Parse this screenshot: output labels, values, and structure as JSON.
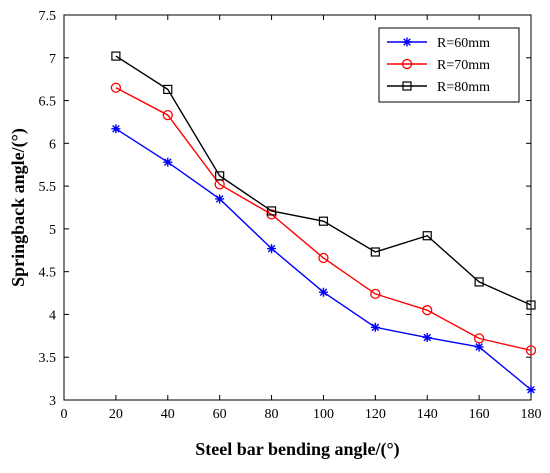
{
  "chart_data": {
    "type": "line",
    "xlabel": "Steel bar bending angle/(°)",
    "ylabel": "Springback angle/(°)",
    "xlim": [
      0,
      180
    ],
    "ylim": [
      3,
      7.5
    ],
    "xticks": [
      0,
      20,
      40,
      60,
      80,
      100,
      120,
      140,
      160,
      180
    ],
    "yticks": [
      3,
      3.5,
      4,
      4.5,
      5,
      5.5,
      6,
      6.5,
      7,
      7.5
    ],
    "xtick_labels": [
      "0",
      "20",
      "40",
      "60",
      "80",
      "100",
      "120",
      "140",
      "160",
      "180"
    ],
    "ytick_labels": [
      "3",
      "3.5",
      "4",
      "4.5",
      "5",
      "5.5",
      "6",
      "6.5",
      "7",
      "7.5"
    ],
    "x": [
      20,
      40,
      60,
      80,
      100,
      120,
      140,
      160,
      180
    ],
    "grid": false,
    "legend_position": "top-right",
    "series": [
      {
        "name": "R=60mm",
        "color": "#0000ff",
        "marker": "asterisk",
        "values": [
          6.17,
          5.78,
          5.35,
          4.77,
          4.26,
          3.85,
          3.73,
          3.62,
          3.12
        ]
      },
      {
        "name": "R=70mm",
        "color": "#ff0000",
        "marker": "circle",
        "values": [
          6.65,
          6.33,
          5.52,
          5.17,
          4.66,
          4.24,
          4.05,
          3.72,
          3.58
        ]
      },
      {
        "name": "R=80mm",
        "color": "#000000",
        "marker": "square",
        "values": [
          7.02,
          6.63,
          5.62,
          5.21,
          5.09,
          4.73,
          4.92,
          4.38,
          4.11
        ]
      }
    ]
  }
}
